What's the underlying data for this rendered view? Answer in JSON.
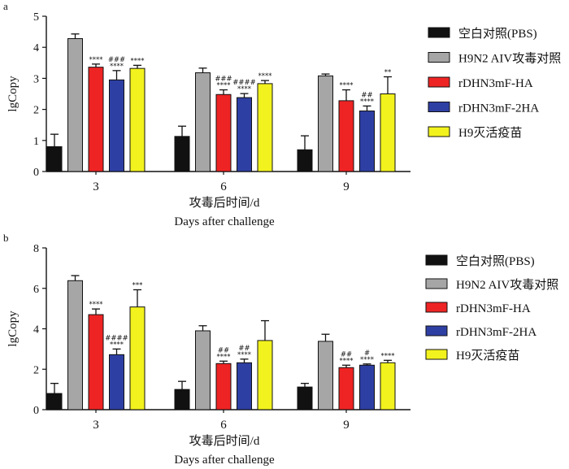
{
  "chart_data": [
    {
      "type": "bar",
      "panel_label": "a",
      "title": "",
      "xlabel": "攻毒后时间/d",
      "xlabel_en": "Days after challenge",
      "ylabel": "lgCopy",
      "ylim": [
        0,
        5
      ],
      "yticks": [
        "0",
        "1",
        "2",
        "3",
        "4",
        "5"
      ],
      "categories": [
        "3",
        "6",
        "9"
      ],
      "series": [
        {
          "name": "空白对照(PBS)",
          "color": "#111111",
          "values": [
            0.8,
            1.13,
            0.7
          ],
          "errors": [
            0.4,
            0.33,
            0.45
          ],
          "annotations": [
            [
              "",
              ""
            ],
            [
              "",
              ""
            ],
            [
              "",
              ""
            ]
          ]
        },
        {
          "name": "H9N2 AIV攻毒对照",
          "color": "#a6a6a6",
          "values": [
            4.28,
            3.18,
            3.08
          ],
          "errors": [
            0.15,
            0.15,
            0.06
          ],
          "annotations": [
            [
              "",
              ""
            ],
            [
              "",
              ""
            ],
            [
              "",
              ""
            ]
          ]
        },
        {
          "name": "rDHN3mF-HA",
          "color": "#ee2424",
          "values": [
            3.36,
            2.48,
            2.28
          ],
          "errors": [
            0.1,
            0.15,
            0.35
          ],
          "annotations": [
            [
              "",
              "****"
            ],
            [
              "###",
              "****"
            ],
            [
              "",
              "****"
            ]
          ]
        },
        {
          "name": "rDHN3mF-2HA",
          "color": "#2e3fa3",
          "values": [
            2.95,
            2.38,
            1.95
          ],
          "errors": [
            0.3,
            0.13,
            0.16
          ],
          "annotations": [
            [
              "###",
              "****"
            ],
            [
              "####",
              "****"
            ],
            [
              "##",
              "****"
            ]
          ]
        },
        {
          "name": "H9灭活疫苗",
          "color": "#f2f21e",
          "values": [
            3.32,
            2.83,
            2.5
          ],
          "errors": [
            0.1,
            0.1,
            0.55
          ],
          "annotations": [
            [
              "",
              "****"
            ],
            [
              "",
              "****"
            ],
            [
              "",
              "**"
            ]
          ]
        }
      ]
    },
    {
      "type": "bar",
      "panel_label": "b",
      "title": "",
      "xlabel": "攻毒后时间/d",
      "xlabel_en": "Days after challenge",
      "ylabel": "lgCopy",
      "ylim": [
        0,
        8
      ],
      "yticks": [
        "0",
        "2",
        "4",
        "6",
        "8"
      ],
      "categories": [
        "3",
        "6",
        "9"
      ],
      "series": [
        {
          "name": "空白对照(PBS)",
          "color": "#111111",
          "values": [
            0.8,
            1.0,
            1.12
          ],
          "errors": [
            0.5,
            0.4,
            0.18
          ],
          "annotations": [
            [
              "",
              ""
            ],
            [
              "",
              ""
            ],
            [
              "",
              ""
            ]
          ]
        },
        {
          "name": "H9N2 AIV攻毒对照",
          "color": "#a6a6a6",
          "values": [
            6.38,
            3.9,
            3.38
          ],
          "errors": [
            0.25,
            0.25,
            0.35
          ],
          "annotations": [
            [
              "",
              ""
            ],
            [
              "",
              ""
            ],
            [
              "",
              ""
            ]
          ]
        },
        {
          "name": "rDHN3mF-HA",
          "color": "#ee2424",
          "values": [
            4.7,
            2.28,
            2.08
          ],
          "errors": [
            0.28,
            0.12,
            0.12
          ],
          "annotations": [
            [
              "",
              "****"
            ],
            [
              "##",
              "****"
            ],
            [
              "##",
              "****"
            ]
          ]
        },
        {
          "name": "rDHN3mF-2HA",
          "color": "#2e3fa3",
          "values": [
            2.72,
            2.32,
            2.2
          ],
          "errors": [
            0.28,
            0.18,
            0.06
          ],
          "annotations": [
            [
              "####",
              "****"
            ],
            [
              "##",
              "****"
            ],
            [
              "#",
              "****"
            ]
          ]
        },
        {
          "name": "H9灭活疫苗",
          "color": "#f2f21e",
          "values": [
            5.08,
            3.42,
            2.32
          ],
          "errors": [
            0.85,
            0.98,
            0.12
          ],
          "annotations": [
            [
              "",
              "***"
            ],
            [
              "",
              ""
            ],
            [
              "",
              "****"
            ]
          ]
        }
      ]
    }
  ]
}
